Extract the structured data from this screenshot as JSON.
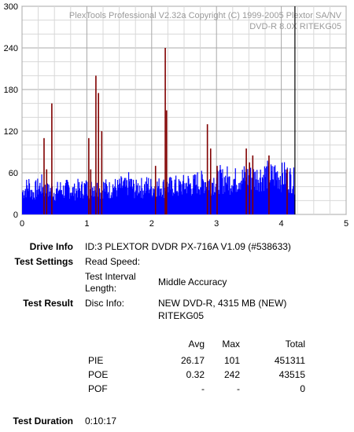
{
  "chart_data": {
    "type": "bar",
    "watermark_line1": "PlexTools Professional V2.32a Copyright (C) 1999-2005 Plextor SA/NV",
    "watermark_line2": "DVD-R   8.0X   RITEKG05",
    "xlim": [
      0,
      5
    ],
    "ylim": [
      0,
      300
    ],
    "x_ticks": [
      "0",
      "1",
      "2",
      "3",
      "4",
      "5"
    ],
    "y_ticks": [
      "0",
      "60",
      "120",
      "180",
      "240",
      "300"
    ],
    "grid": true,
    "x_end": 4.21,
    "series": [
      {
        "color": "#0000ff",
        "values": [
          [
            0.0,
            35
          ],
          [
            0.05,
            40
          ],
          [
            0.1,
            45
          ],
          [
            0.15,
            32
          ],
          [
            0.2,
            38
          ],
          [
            0.25,
            42
          ],
          [
            0.3,
            45
          ],
          [
            0.35,
            38
          ],
          [
            0.4,
            35
          ],
          [
            0.45,
            40
          ],
          [
            0.5,
            33
          ],
          [
            0.55,
            38
          ],
          [
            0.6,
            40
          ],
          [
            0.65,
            36
          ],
          [
            0.7,
            42
          ],
          [
            0.75,
            38
          ],
          [
            0.8,
            35
          ],
          [
            0.85,
            40
          ],
          [
            0.9,
            37
          ],
          [
            0.95,
            42
          ],
          [
            1.0,
            40
          ],
          [
            1.05,
            38
          ],
          [
            1.1,
            45
          ],
          [
            1.15,
            40
          ],
          [
            1.2,
            36
          ],
          [
            1.25,
            42
          ],
          [
            1.3,
            40
          ],
          [
            1.35,
            38
          ],
          [
            1.4,
            44
          ],
          [
            1.45,
            40
          ],
          [
            1.5,
            42
          ],
          [
            1.55,
            45
          ],
          [
            1.6,
            40
          ],
          [
            1.65,
            50
          ],
          [
            1.7,
            42
          ],
          [
            1.75,
            38
          ],
          [
            1.8,
            45
          ],
          [
            1.85,
            40
          ],
          [
            1.9,
            43
          ],
          [
            1.95,
            45
          ],
          [
            2.0,
            40
          ],
          [
            2.05,
            44
          ],
          [
            2.1,
            42
          ],
          [
            2.15,
            45
          ],
          [
            2.2,
            40
          ],
          [
            2.25,
            44
          ],
          [
            2.3,
            42
          ],
          [
            2.35,
            46
          ],
          [
            2.4,
            40
          ],
          [
            2.45,
            44
          ],
          [
            2.5,
            45
          ],
          [
            2.55,
            48
          ],
          [
            2.6,
            44
          ],
          [
            2.65,
            46
          ],
          [
            2.7,
            50
          ],
          [
            2.75,
            48
          ],
          [
            2.8,
            52
          ],
          [
            2.85,
            50
          ],
          [
            2.9,
            48
          ],
          [
            2.95,
            52
          ],
          [
            3.0,
            50
          ],
          [
            3.05,
            55
          ],
          [
            3.1,
            52
          ],
          [
            3.15,
            56
          ],
          [
            3.2,
            50
          ],
          [
            3.25,
            55
          ],
          [
            3.3,
            52
          ],
          [
            3.35,
            58
          ],
          [
            3.4,
            55
          ],
          [
            3.45,
            60
          ],
          [
            3.5,
            55
          ],
          [
            3.55,
            58
          ],
          [
            3.6,
            56
          ],
          [
            3.65,
            60
          ],
          [
            3.7,
            58
          ],
          [
            3.75,
            62
          ],
          [
            3.8,
            60
          ],
          [
            3.85,
            58
          ],
          [
            3.9,
            62
          ],
          [
            3.95,
            60
          ],
          [
            4.0,
            58
          ],
          [
            4.05,
            60
          ],
          [
            4.1,
            56
          ],
          [
            4.15,
            55
          ],
          [
            4.21,
            50
          ]
        ]
      },
      {
        "color": "#800000",
        "values": [
          [
            0.33,
            110
          ],
          [
            0.37,
            65
          ],
          [
            0.45,
            160
          ],
          [
            1.02,
            110
          ],
          [
            1.05,
            65
          ],
          [
            1.13,
            200
          ],
          [
            1.17,
            175
          ],
          [
            1.22,
            120
          ],
          [
            2.05,
            70
          ],
          [
            2.2,
            240
          ],
          [
            2.22,
            150
          ],
          [
            2.85,
            130
          ],
          [
            2.9,
            95
          ],
          [
            3.0,
            70
          ],
          [
            3.45,
            95
          ],
          [
            3.5,
            75
          ],
          [
            3.55,
            85
          ],
          [
            3.8,
            85
          ],
          [
            4.08,
            65
          ]
        ]
      }
    ]
  },
  "info": {
    "drive_info_label": "Drive Info",
    "drive_info_value": "ID:3 PLEXTOR DVDR PX-716A V1.09 (#538633)",
    "test_settings_label": "Test Settings",
    "read_speed_label": "Read Speed:",
    "interval_label_1": "Test Interval",
    "interval_label_2": "Length:",
    "interval_value": "Middle Accuracy",
    "test_result_label": "Test Result",
    "disc_info_label": "Disc Info:",
    "disc_info_value_1": "NEW DVD-R, 4315 MB (NEW)",
    "disc_info_value_2": "RITEKG05"
  },
  "stats": {
    "headers": {
      "avg": "Avg",
      "max": "Max",
      "total": "Total"
    },
    "rows": [
      {
        "name": "PIE",
        "avg": "26.17",
        "max": "101",
        "total": "451311"
      },
      {
        "name": "POE",
        "avg": "0.32",
        "max": "242",
        "total": "43515"
      },
      {
        "name": "POF",
        "avg": "-",
        "max": "-",
        "total": "0"
      }
    ]
  },
  "duration": {
    "label": "Test Duration",
    "value": "0:10:17"
  }
}
